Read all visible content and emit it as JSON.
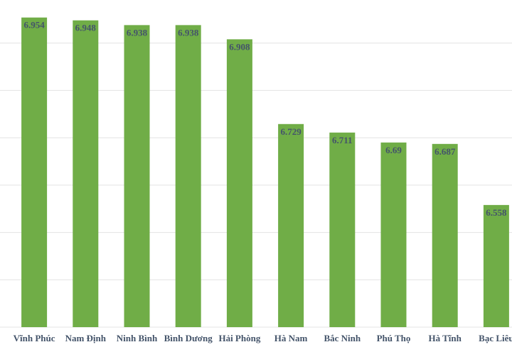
{
  "chart_data": {
    "type": "bar",
    "categories": [
      "Vĩnh Phúc",
      "Nam Định",
      "Ninh Bình",
      "Bình Dương",
      "Hải Phòng",
      "Hà Nam",
      "Bắc Ninh",
      "Phú Thọ",
      "Hà Tĩnh",
      "Bạc Liêu"
    ],
    "values": [
      6.954,
      6.948,
      6.938,
      6.938,
      6.908,
      6.729,
      6.711,
      6.69,
      6.687,
      6.558
    ],
    "color": "#70ad47",
    "ylim": [
      6.3,
      7.0
    ],
    "yticks": [
      6.3,
      6.4,
      6.5,
      6.6,
      6.7,
      6.8,
      6.9
    ],
    "grid": true
  }
}
